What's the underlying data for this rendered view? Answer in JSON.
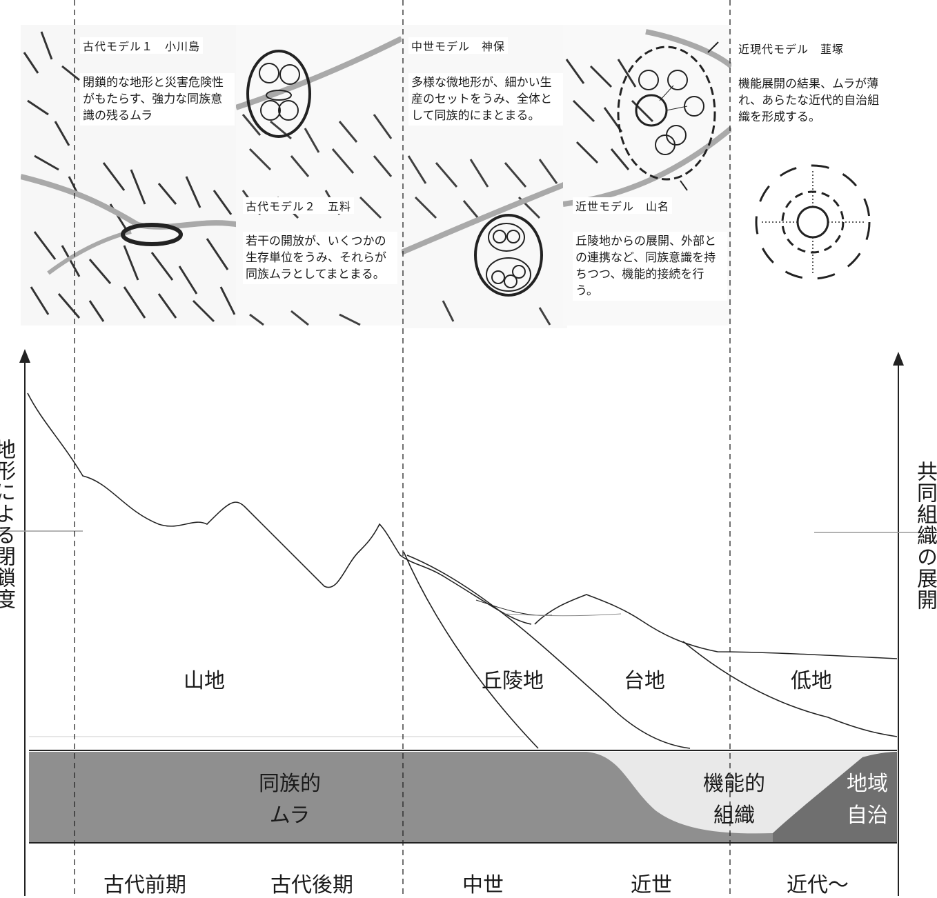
{
  "panels": [
    {
      "title": "古代モデル１　小川島",
      "text": "閉鎖的な地形と災害危険性がもたらす、強力な同族意識の残るムラ"
    },
    {
      "title": "古代モデル２　五料",
      "text": "若干の開放が、いくつかの生存単位をうみ、それらが同族ムラとしてまとまる。"
    },
    {
      "title": "中世モデル　神保",
      "text": "多様な微地形が、細かい生産のセットをうみ、全体として同族的にまとまる。"
    },
    {
      "title": "近世モデル　山名",
      "text": "丘陵地からの展開、外部との連携など、同族意識を持ちつつ、機能的接続を行う。"
    },
    {
      "title": "近現代モデル　韮塚",
      "text": "機能展開の結果、ムラが薄れ、あらたな近代的自治組織を形成する。"
    }
  ],
  "axes": {
    "left": "地形による閉鎖度",
    "right": "共同組織の展開"
  },
  "terrain": [
    "山地",
    "丘陵地",
    "台地",
    "低地"
  ],
  "organization": [
    {
      "line1": "同族的",
      "line2": "ムラ"
    },
    {
      "line1": "機能的",
      "line2": "組織"
    },
    {
      "line1": "地域",
      "line2": "自治"
    }
  ],
  "eras": [
    "古代前期",
    "古代後期",
    "中世",
    "近世",
    "近代～"
  ],
  "colors": {
    "band_dark": "#8f8f8f",
    "band_mid": "#c4c4c4",
    "band_light": "#e9e9e9",
    "line": "#222222",
    "map_road": "#a9a9a9"
  }
}
